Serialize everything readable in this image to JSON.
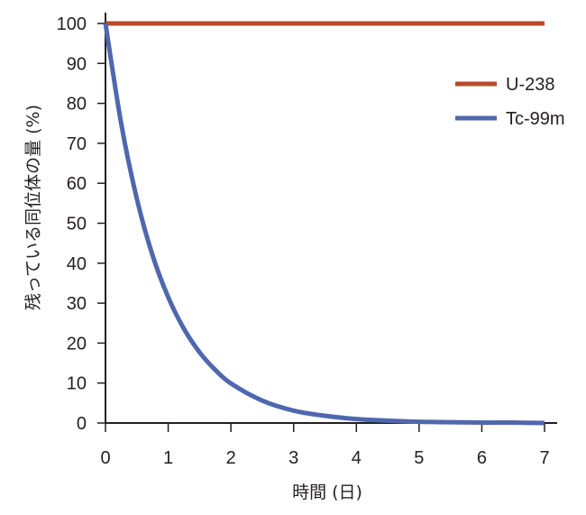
{
  "chart_data": {
    "type": "line",
    "xlabel": "時間 (日)",
    "ylabel": "残っている同位体の量 (%)",
    "xlim": [
      0,
      7
    ],
    "ylim": [
      0,
      100
    ],
    "x_ticks": [
      "0",
      "1",
      "2",
      "3",
      "4",
      "5",
      "6",
      "7"
    ],
    "y_ticks": [
      "0",
      "10",
      "20",
      "30",
      "40",
      "50",
      "60",
      "70",
      "80",
      "90",
      "100"
    ],
    "grid": false,
    "legend_position": "top-right",
    "series": [
      {
        "name": "U-238",
        "color": "#b94a2c",
        "x": [
          0,
          1,
          2,
          3,
          4,
          5,
          6,
          7
        ],
        "y": [
          100,
          100,
          100,
          100,
          100,
          100,
          100,
          100
        ]
      },
      {
        "name": "Tc-99m",
        "color": "#4f67ad",
        "x": [
          0,
          0.25,
          0.5,
          0.75,
          1,
          1.25,
          1.5,
          1.75,
          2,
          2.5,
          3,
          3.5,
          4,
          4.5,
          5,
          5.5,
          6,
          6.5,
          7
        ],
        "y": [
          100,
          75,
          56.1,
          42.0,
          31.5,
          23.6,
          17.7,
          13.3,
          9.9,
          5.6,
          3.1,
          1.8,
          1.0,
          0.6,
          0.3,
          0.2,
          0.1,
          0.1,
          0.0
        ]
      }
    ]
  }
}
